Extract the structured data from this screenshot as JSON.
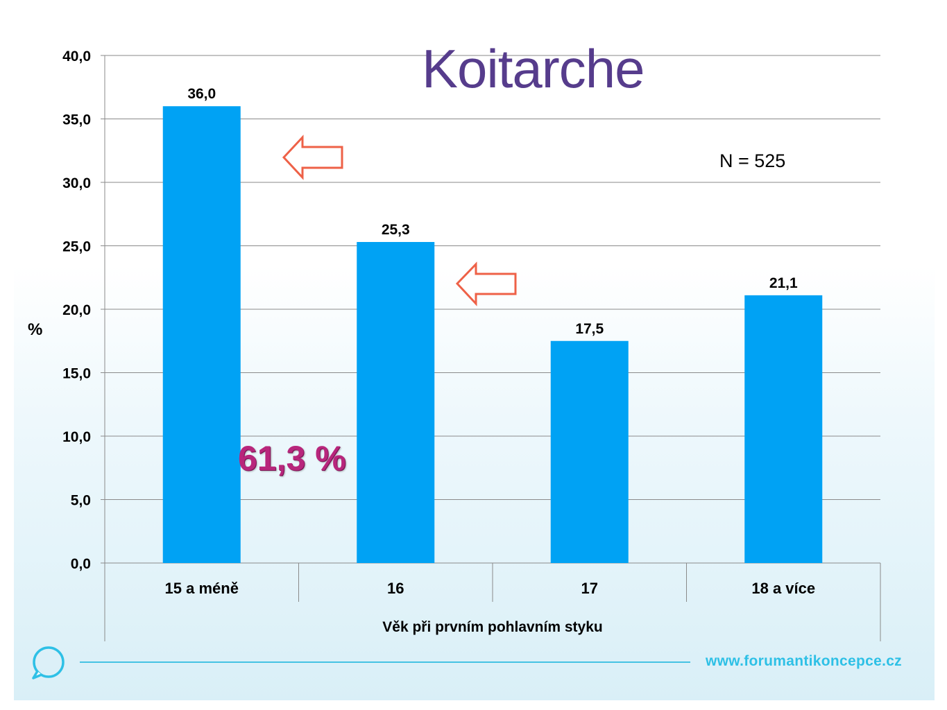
{
  "slide": {
    "title": "Koitarche",
    "n_label": "N = 525",
    "callout": "61,3 %",
    "footer_url": "www.forumantikoncepce.cz"
  },
  "chart_data": {
    "type": "bar",
    "title": "",
    "xlabel": "Věk při prvním pohlavním styku",
    "ylabel": "%",
    "categories": [
      "15 a méně",
      "16",
      "17",
      "18 a více"
    ],
    "values": [
      36.0,
      25.3,
      17.5,
      21.1
    ],
    "value_labels": [
      "36,0",
      "25,3",
      "17,5",
      "21,1"
    ],
    "ylim": [
      0,
      40
    ],
    "y_ticks": [
      "0,0",
      "5,0",
      "10,0",
      "15,0",
      "20,0",
      "25,0",
      "30,0",
      "35,0",
      "40,0"
    ],
    "grid": true,
    "legend": "none",
    "colors": {
      "bar": "#00a2f4",
      "arrow": "#ee6147",
      "title": "#563c8c",
      "callout": "#b8267c",
      "footer": "#2ec0e6"
    }
  }
}
